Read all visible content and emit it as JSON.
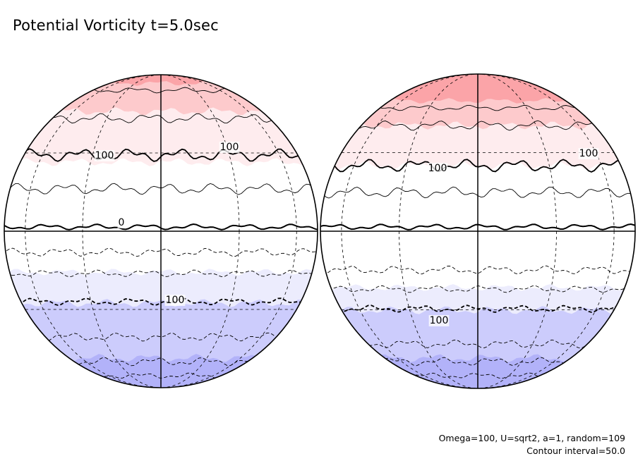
{
  "title": "Potential Vorticity t=5.0sec",
  "footer": {
    "parameters": "Omega=100, U=sqrt2, a=1, random=109",
    "contour_interval": "Contour interval=50.0"
  },
  "colors": {
    "band_n3": "#fba4a8",
    "band_n2": "#fdcacc",
    "band_n1": "#feecee",
    "band_0": "#ffffff",
    "band_s1": "#ececfd",
    "band_s2": "#ccccfc",
    "band_s3": "#b2b2f9",
    "line": "#000000"
  },
  "globes": [
    {
      "name": "left-hemisphere",
      "labels": [
        {
          "text": "100"
        },
        {
          "text": "100"
        },
        {
          "text": "0"
        },
        {
          "text": "100"
        }
      ]
    },
    {
      "name": "right-hemisphere",
      "labels": [
        {
          "text": "100"
        },
        {
          "text": "100"
        },
        {
          "text": "100"
        }
      ]
    }
  ]
}
